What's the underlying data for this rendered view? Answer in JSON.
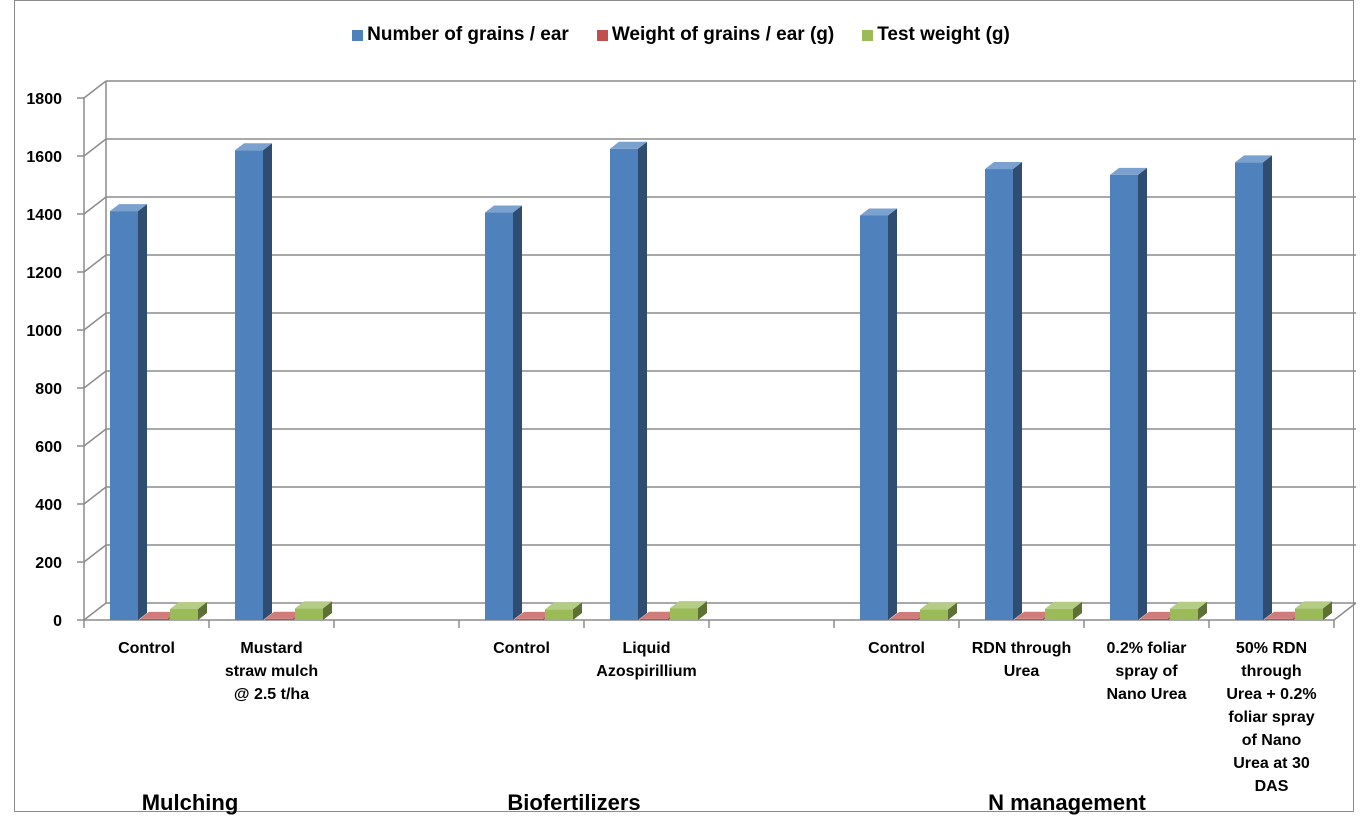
{
  "chart_data": {
    "type": "bar",
    "legend_position": "top",
    "grid": true,
    "three_d": true,
    "ylim": [
      0,
      1800
    ],
    "yticks": [
      0,
      200,
      400,
      600,
      800,
      1000,
      1200,
      1400,
      1600,
      1800
    ],
    "categories": [
      {
        "lines": [
          "Control"
        ]
      },
      {
        "lines": [
          "Mustard",
          "straw mulch",
          "@ 2.5 t/ha"
        ]
      },
      {
        "lines": []
      },
      {
        "lines": [
          "Control"
        ]
      },
      {
        "lines": [
          "Liquid",
          "Azospirillium"
        ]
      },
      {
        "lines": []
      },
      {
        "lines": [
          "Control"
        ]
      },
      {
        "lines": [
          "RDN through",
          "Urea"
        ]
      },
      {
        "lines": [
          "0.2% foliar",
          "spray of",
          "Nano Urea"
        ]
      },
      {
        "lines": [
          "50% RDN",
          "through",
          "Urea + 0.2%",
          "foliar spray",
          "of Nano",
          "Urea at 30",
          "DAS"
        ]
      }
    ],
    "groups": [
      {
        "label": "Mulching"
      },
      {
        "label": "Biofertilizers"
      },
      {
        "label": "N management"
      }
    ],
    "series": [
      {
        "name": "Number of grains / ear",
        "color": "#4f81bd",
        "values": [
          1410,
          1620,
          null,
          1405,
          1625,
          null,
          1395,
          1555,
          1535,
          1578
        ]
      },
      {
        "name": "Weight of grains / ear (g)",
        "color": "#c0504d",
        "values": [
          3.8,
          4.3,
          null,
          3.7,
          4.4,
          null,
          3.6,
          4.1,
          4.0,
          4.2
        ]
      },
      {
        "name": "Test weight (g)",
        "color": "#9bbb59",
        "values": [
          38,
          40,
          null,
          37,
          41,
          null,
          36,
          39,
          39,
          40
        ]
      }
    ]
  }
}
